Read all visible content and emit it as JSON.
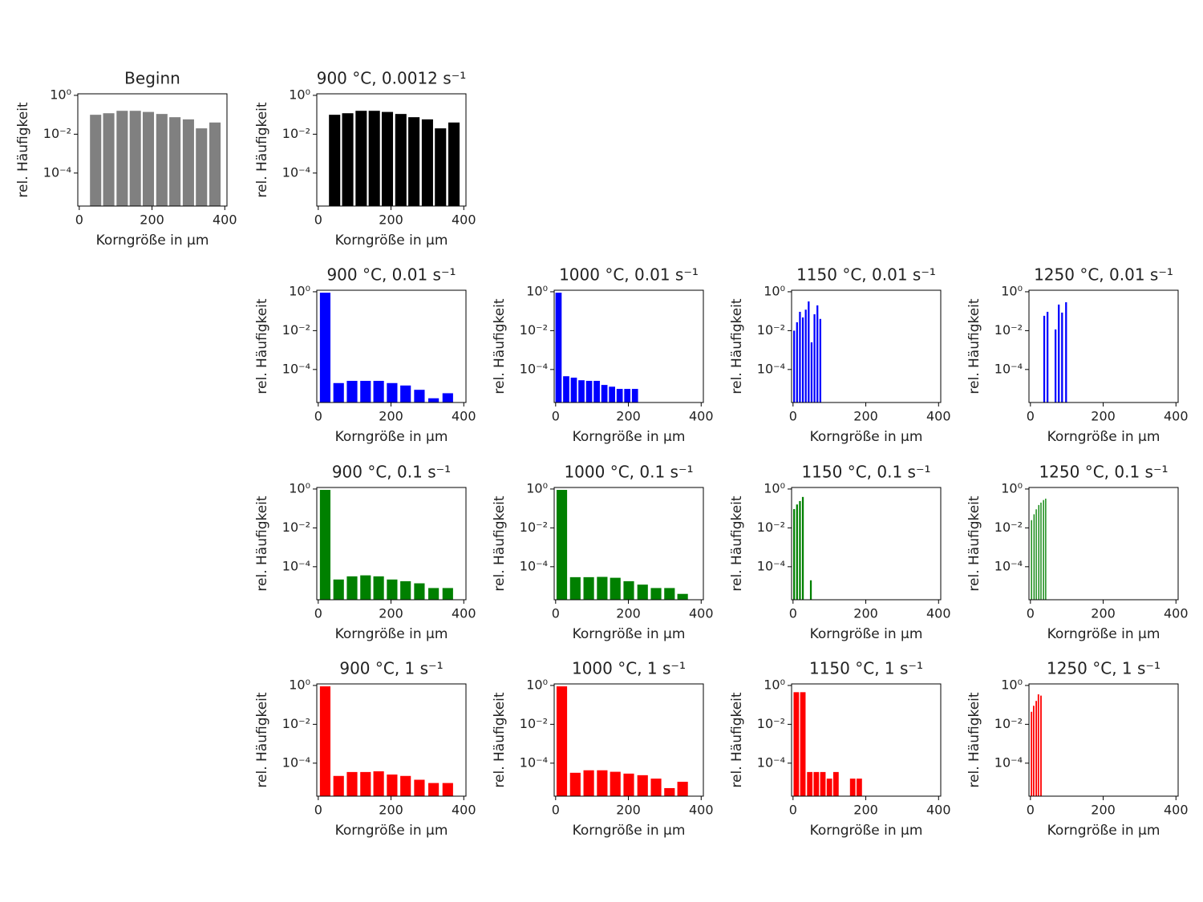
{
  "chart_data": [
    {
      "type": "bar",
      "title": "Beginn",
      "xlabel": "Korngröße in µm",
      "ylabel": "rel. Häufigkeit",
      "color": "#808080",
      "yscale": "log",
      "bar_width": 31,
      "x": [
        45,
        81,
        118,
        154,
        190,
        227,
        263,
        300,
        336,
        373
      ],
      "values": [
        0.1,
        0.12,
        0.16,
        0.16,
        0.14,
        0.11,
        0.075,
        0.058,
        0.02,
        0.04
      ],
      "xlim": [
        -4,
        406
      ],
      "xticks": [
        0,
        200,
        400
      ],
      "ylim": [
        2e-06,
        1.2
      ],
      "yticks": [
        {
          "value": 1,
          "label": "10⁰"
        },
        {
          "value": 0.01,
          "label": "10⁻²"
        },
        {
          "value": 0.0001,
          "label": "10⁻⁴"
        }
      ]
    },
    {
      "type": "bar",
      "title": "900 °C, 0.0012 s⁻¹",
      "xlabel": "Korngröße in µm",
      "ylabel": "rel. Häufigkeit",
      "color": "#000000",
      "yscale": "log",
      "bar_width": 31,
      "x": [
        45,
        81,
        118,
        154,
        190,
        227,
        263,
        300,
        336,
        373
      ],
      "values": [
        0.1,
        0.12,
        0.16,
        0.16,
        0.14,
        0.11,
        0.075,
        0.058,
        0.02,
        0.04
      ],
      "xlim": [
        -4,
        406
      ],
      "xticks": [
        0,
        200,
        400
      ],
      "ylim": [
        2e-06,
        1.2
      ],
      "yticks": [
        {
          "value": 1,
          "label": "10⁰"
        },
        {
          "value": 0.01,
          "label": "10⁻²"
        },
        {
          "value": 0.0001,
          "label": "10⁻⁴"
        }
      ]
    },
    {
      "type": "bar",
      "title": "900 °C, 0.01 s⁻¹",
      "xlabel": "Korngröße in µm",
      "ylabel": "rel. Häufigkeit",
      "color": "#0000ff",
      "yscale": "log",
      "bar_width": 29,
      "x": [
        19,
        56,
        93,
        130,
        166,
        203,
        240,
        278,
        317,
        356
      ],
      "values": [
        0.9,
        2e-05,
        2.6e-05,
        2.6e-05,
        2.6e-05,
        2e-05,
        1.5e-05,
        9e-06,
        3.3e-06,
        6e-06
      ],
      "xlim": [
        -4,
        406
      ],
      "xticks": [
        0,
        200,
        400
      ],
      "ylim": [
        2e-06,
        1.2
      ],
      "yticks": [
        {
          "value": 1,
          "label": "10⁰"
        },
        {
          "value": 0.01,
          "label": "10⁻²"
        },
        {
          "value": 0.0001,
          "label": "10⁻⁴"
        }
      ]
    },
    {
      "type": "bar",
      "title": "1000 °C, 0.01 s⁻¹",
      "xlabel": "Korngröße in µm",
      "ylabel": "rel. Häufigkeit",
      "color": "#0000ff",
      "yscale": "log",
      "bar_width": 17,
      "x": [
        8,
        29,
        50,
        71,
        92,
        113,
        134,
        155,
        176,
        197,
        218
      ],
      "values": [
        0.9,
        4.5e-05,
        3.8e-05,
        2.8e-05,
        2.6e-05,
        2.6e-05,
        1.6e-05,
        1.3e-05,
        1e-05,
        1e-05,
        1e-05
      ],
      "xlim": [
        -4,
        406
      ],
      "xticks": [
        0,
        200,
        400
      ],
      "ylim": [
        2e-06,
        1.2
      ],
      "yticks": [
        {
          "value": 1,
          "label": "10⁰"
        },
        {
          "value": 0.01,
          "label": "10⁻²"
        },
        {
          "value": 0.0001,
          "label": "10⁻⁴"
        }
      ]
    },
    {
      "type": "bar",
      "title": "1150 °C, 0.01 s⁻¹",
      "xlabel": "Korngröße in µm",
      "ylabel": "rel. Häufigkeit",
      "color": "#0000ff",
      "yscale": "log",
      "bar_width": 5,
      "x": [
        3,
        11,
        19,
        27,
        35,
        43,
        51,
        59,
        67,
        75
      ],
      "values": [
        0.01,
        0.027,
        0.093,
        0.048,
        0.12,
        0.32,
        0.0025,
        0.07,
        0.2,
        0.04
      ],
      "xlim": [
        -4,
        406
      ],
      "xticks": [
        0,
        200,
        400
      ],
      "ylim": [
        2e-06,
        1.2
      ],
      "yticks": [
        {
          "value": 1,
          "label": "10⁰"
        },
        {
          "value": 0.01,
          "label": "10⁻²"
        },
        {
          "value": 0.0001,
          "label": "10⁻⁴"
        }
      ]
    },
    {
      "type": "bar",
      "title": "1250 °C, 0.01 s⁻¹",
      "xlabel": "Korngröße in µm",
      "ylabel": "rel. Häufigkeit",
      "color": "#0000ff",
      "yscale": "log",
      "bar_width": 5,
      "x": [
        38,
        47,
        69,
        78,
        87,
        98
      ],
      "values": [
        0.058,
        0.093,
        0.0115,
        0.22,
        0.085,
        0.29
      ],
      "xlim": [
        -4,
        406
      ],
      "xticks": [
        0,
        200,
        400
      ],
      "ylim": [
        2e-06,
        1.2
      ],
      "yticks": [
        {
          "value": 1,
          "label": "10⁰"
        },
        {
          "value": 0.01,
          "label": "10⁻²"
        },
        {
          "value": 0.0001,
          "label": "10⁻⁴"
        }
      ]
    },
    {
      "type": "bar",
      "title": "900 °C, 0.1 s⁻¹",
      "xlabel": "Korngröße in µm",
      "ylabel": "rel. Häufigkeit",
      "color": "#008000",
      "yscale": "log",
      "bar_width": 29,
      "x": [
        19,
        56,
        93,
        130,
        166,
        203,
        240,
        278,
        317,
        356
      ],
      "values": [
        0.9,
        2.2e-05,
        3.2e-05,
        3.6e-05,
        3.2e-05,
        2.2e-05,
        1.8e-05,
        1.4e-05,
        8e-06,
        8e-06
      ],
      "xlim": [
        -4,
        406
      ],
      "xticks": [
        0,
        200,
        400
      ],
      "ylim": [
        2e-06,
        1.2
      ],
      "yticks": [
        {
          "value": 1,
          "label": "10⁰"
        },
        {
          "value": 0.01,
          "label": "10⁻²"
        },
        {
          "value": 0.0001,
          "label": "10⁻⁴"
        }
      ]
    },
    {
      "type": "bar",
      "title": "1000 °C, 0.1 s⁻¹",
      "xlabel": "Korngröße in µm",
      "ylabel": "rel. Häufigkeit",
      "color": "#008000",
      "yscale": "log",
      "bar_width": 29,
      "x": [
        17,
        54,
        91,
        128,
        164,
        201,
        239,
        276,
        313,
        349
      ],
      "values": [
        0.9,
        2.9e-05,
        2.9e-05,
        3e-05,
        2.7e-05,
        1.8e-05,
        1.2e-05,
        8e-06,
        8e-06,
        4e-06
      ],
      "xlim": [
        -4,
        406
      ],
      "xticks": [
        0,
        200,
        400
      ],
      "ylim": [
        2e-06,
        1.2
      ],
      "yticks": [
        {
          "value": 1,
          "label": "10⁰"
        },
        {
          "value": 0.01,
          "label": "10⁻²"
        },
        {
          "value": 0.0001,
          "label": "10⁻⁴"
        }
      ]
    },
    {
      "type": "bar",
      "title": "1150 °C, 0.1 s⁻¹",
      "xlabel": "Korngröße in µm",
      "ylabel": "rel. Häufigkeit",
      "color": "#008000",
      "yscale": "log",
      "bar_width": 5,
      "x": [
        3,
        11,
        19,
        27,
        49
      ],
      "values": [
        0.093,
        0.16,
        0.24,
        0.39,
        2e-05
      ],
      "xlim": [
        -4,
        406
      ],
      "xticks": [
        0,
        200,
        400
      ],
      "ylim": [
        2e-06,
        1.2
      ],
      "yticks": [
        {
          "value": 1,
          "label": "10⁰"
        },
        {
          "value": 0.01,
          "label": "10⁻²"
        },
        {
          "value": 0.0001,
          "label": "10⁻⁴"
        }
      ]
    },
    {
      "type": "bar",
      "title": "1250 °C, 0.1 s⁻¹",
      "xlabel": "Korngröße in µm",
      "ylabel": "rel. Häufigkeit",
      "color": "#008000",
      "yscale": "log",
      "bar_width": 3,
      "x": [
        3,
        10,
        16,
        23,
        29,
        36,
        42
      ],
      "values": [
        0.025,
        0.05,
        0.09,
        0.15,
        0.2,
        0.27,
        0.32
      ],
      "xlim": [
        -4,
        406
      ],
      "xticks": [
        0,
        200,
        400
      ],
      "ylim": [
        2e-06,
        1.2
      ],
      "yticks": [
        {
          "value": 1,
          "label": "10⁰"
        },
        {
          "value": 0.01,
          "label": "10⁻²"
        },
        {
          "value": 0.0001,
          "label": "10⁻⁴"
        }
      ]
    },
    {
      "type": "bar",
      "title": "900 °C, 1 s⁻¹",
      "xlabel": "Korngröße in µm",
      "ylabel": "rel. Häufigkeit",
      "color": "#ff0000",
      "yscale": "log",
      "bar_width": 29,
      "x": [
        19,
        56,
        93,
        130,
        166,
        203,
        240,
        278,
        317,
        356
      ],
      "values": [
        0.9,
        2.2e-05,
        3.5e-05,
        3.5e-05,
        3.8e-05,
        2.6e-05,
        2.2e-05,
        1.4e-05,
        9.5e-06,
        9.5e-06
      ],
      "xlim": [
        -4,
        406
      ],
      "xticks": [
        0,
        200,
        400
      ],
      "ylim": [
        2e-06,
        1.2
      ],
      "yticks": [
        {
          "value": 1,
          "label": "10⁰"
        },
        {
          "value": 0.01,
          "label": "10⁻²"
        },
        {
          "value": 0.0001,
          "label": "10⁻⁴"
        }
      ]
    },
    {
      "type": "bar",
      "title": "1000 °C, 1 s⁻¹",
      "xlabel": "Korngröße in µm",
      "ylabel": "rel. Häufigkeit",
      "color": "#ff0000",
      "yscale": "log",
      "bar_width": 29,
      "x": [
        17,
        54,
        91,
        128,
        164,
        201,
        239,
        276,
        313,
        349
      ],
      "values": [
        0.9,
        3.2e-05,
        4.3e-05,
        4.3e-05,
        3.6e-05,
        2.9e-05,
        2.4e-05,
        1.6e-05,
        5.2e-06,
        1.1e-05
      ],
      "xlim": [
        -4,
        406
      ],
      "xticks": [
        0,
        200,
        400
      ],
      "ylim": [
        2e-06,
        1.2
      ],
      "yticks": [
        {
          "value": 1,
          "label": "10⁰"
        },
        {
          "value": 0.01,
          "label": "10⁻²"
        },
        {
          "value": 0.0001,
          "label": "10⁻⁴"
        }
      ]
    },
    {
      "type": "bar",
      "title": "1150 °C, 1 s⁻¹",
      "xlabel": "Korngröße in µm",
      "ylabel": "rel. Häufigkeit",
      "color": "#ff0000",
      "yscale": "log",
      "bar_width": 15,
      "x": [
        9,
        27,
        46,
        64,
        82,
        100,
        118,
        164,
        182
      ],
      "values": [
        0.45,
        0.45,
        3.5e-05,
        3.5e-05,
        3.5e-05,
        1.6e-05,
        3.5e-05,
        1.6e-05,
        1.6e-05
      ],
      "xlim": [
        -4,
        406
      ],
      "xticks": [
        0,
        200,
        400
      ],
      "ylim": [
        2e-06,
        1.2
      ],
      "yticks": [
        {
          "value": 1,
          "label": "10⁰"
        },
        {
          "value": 0.01,
          "label": "10⁻²"
        },
        {
          "value": 0.0001,
          "label": "10⁻⁴"
        }
      ]
    },
    {
      "type": "bar",
      "title": "1250 °C, 1 s⁻¹",
      "xlabel": "Korngröße in µm",
      "ylabel": "rel. Häufigkeit",
      "color": "#ff0000",
      "yscale": "log",
      "bar_width": 4,
      "x": [
        3,
        9,
        16,
        22,
        29
      ],
      "values": [
        0.044,
        0.09,
        0.16,
        0.35,
        0.3
      ],
      "xlim": [
        -4,
        406
      ],
      "xticks": [
        0,
        200,
        400
      ],
      "ylim": [
        2e-06,
        1.2
      ],
      "yticks": [
        {
          "value": 1,
          "label": "10⁰"
        },
        {
          "value": 0.01,
          "label": "10⁻²"
        },
        {
          "value": 0.0001,
          "label": "10⁻⁴"
        }
      ]
    }
  ]
}
